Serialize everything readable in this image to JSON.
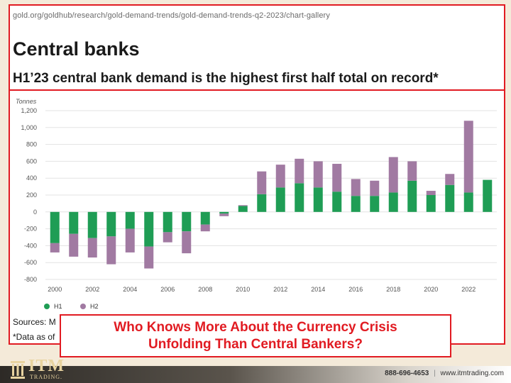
{
  "page": {
    "url": "gold.org/goldhub/research/gold-demand-trends/gold-demand-trends-q2-2023/chart-gallery",
    "section_title": "Central banks",
    "subtitle": "H1’23 central bank demand is the highest first half total on record*",
    "sources": "Sources: M",
    "data_note": "*Data as of",
    "callout_line1": "Who Knows More About the Currency Crisis",
    "callout_line2": "Unfolding Than Central Bankers?"
  },
  "footer": {
    "logo_text": "ITM",
    "logo_sub": "TRADING.",
    "phone": "888-696-4653",
    "website": "www.itmtrading.com"
  },
  "colors": {
    "accent_red": "#e11b22",
    "h1_green": "#1f9d55",
    "h2_purple": "#a17aa2"
  },
  "chart_data": {
    "type": "bar",
    "stacked": true,
    "ylabel": "Tonnes",
    "xlabel": "",
    "ylim": [
      -800,
      1200
    ],
    "yticks": [
      1200,
      1000,
      800,
      600,
      400,
      200,
      0,
      -200,
      -400,
      -600,
      -800
    ],
    "ytick_labels": [
      "1,200",
      "1,000",
      "800",
      "600",
      "400",
      "200",
      "0",
      "-200",
      "-400",
      "-600",
      "-800"
    ],
    "x": [
      2000,
      2001,
      2002,
      2003,
      2004,
      2005,
      2006,
      2007,
      2008,
      2009,
      2010,
      2011,
      2012,
      2013,
      2014,
      2015,
      2016,
      2017,
      2018,
      2019,
      2020,
      2021,
      2022,
      2023
    ],
    "xtick_labels": [
      "2000",
      "2002",
      "2004",
      "2006",
      "2008",
      "2010",
      "2012",
      "2014",
      "2016",
      "2018",
      "2020",
      "2022"
    ],
    "legend_position": "bottom-left",
    "series": [
      {
        "name": "H1",
        "values": [
          -370,
          -260,
          -310,
          -290,
          -200,
          -410,
          -240,
          -230,
          -150,
          -20,
          70,
          210,
          290,
          340,
          290,
          240,
          190,
          190,
          230,
          370,
          200,
          320,
          230,
          380
        ]
      },
      {
        "name": "H2",
        "values": [
          -110,
          -270,
          -230,
          -330,
          -280,
          -260,
          -120,
          -260,
          -80,
          -30,
          10,
          270,
          270,
          290,
          310,
          330,
          200,
          180,
          420,
          230,
          50,
          130,
          850,
          0
        ]
      }
    ]
  }
}
